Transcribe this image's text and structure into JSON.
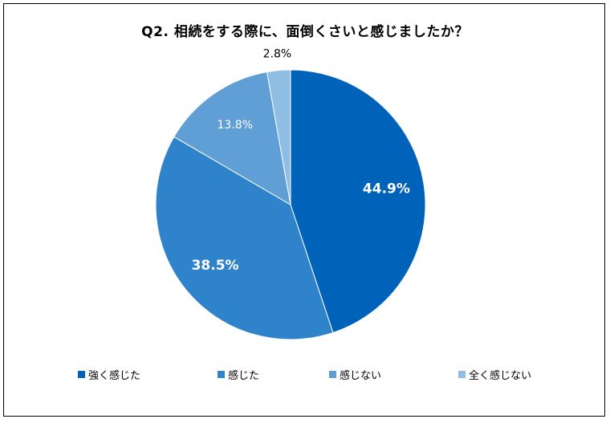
{
  "chart_data": {
    "type": "pie",
    "title": "Q2.  相続をする際に、面倒くさいと感じましたか？",
    "categories": [
      "強く感じた",
      "感じた",
      "感じない",
      "全く感じない"
    ],
    "values": [
      44.9,
      38.5,
      13.8,
      2.8
    ],
    "labels": [
      "44.9%",
      "38.5%",
      "13.8%",
      "2.8%"
    ],
    "colors": [
      "#0062B8",
      "#2E83CA",
      "#5F9FD6",
      "#90BDE3"
    ],
    "legend_position": "bottom"
  }
}
